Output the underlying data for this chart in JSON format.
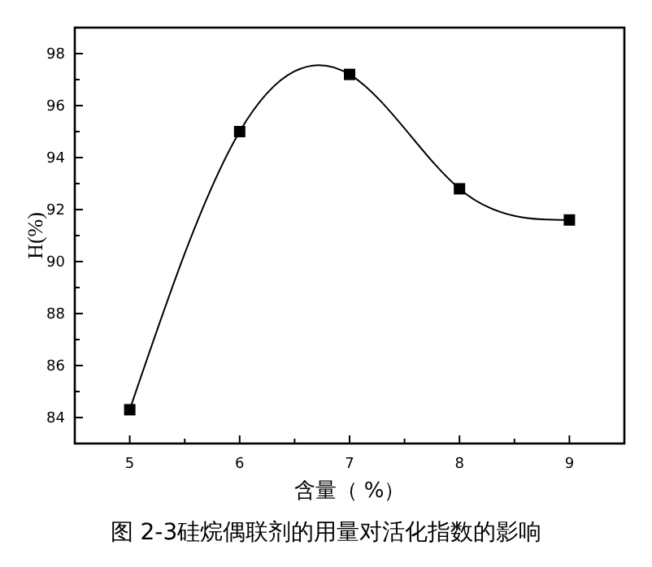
{
  "chart_data": {
    "type": "line",
    "xlabel": "含量（ %）",
    "ylabel": "H(%)",
    "annotations": [
      "图 2-3硅烷偶联剂的用量对活化指数的影响"
    ],
    "x": [
      5,
      6,
      7,
      8,
      9
    ],
    "values": [
      84.3,
      95.0,
      97.2,
      92.8,
      91.6
    ],
    "color": "#000000",
    "marker": "square",
    "line_style": "solid",
    "xlim": [
      4.5,
      9.5
    ],
    "xticks": [
      5,
      {
        "value": 5.5,
        "label": null
      },
      6,
      {
        "value": 6.5,
        "label": null
      },
      7,
      {
        "value": 7.5,
        "label": null
      },
      8,
      {
        "value": 8.5,
        "label": null
      },
      9
    ],
    "ylim": [
      83,
      99
    ],
    "yticks": [
      {
        "value": 83,
        "label": null
      },
      84,
      {
        "value": 85,
        "label": null
      },
      86,
      {
        "value": 87,
        "label": null
      },
      88,
      {
        "value": 89,
        "label": null
      },
      90,
      {
        "value": 91,
        "label": null
      },
      92,
      {
        "value": 93,
        "label": null
      },
      94,
      {
        "value": 95,
        "label": null
      },
      96,
      {
        "value": 97,
        "label": null
      },
      98
    ]
  }
}
